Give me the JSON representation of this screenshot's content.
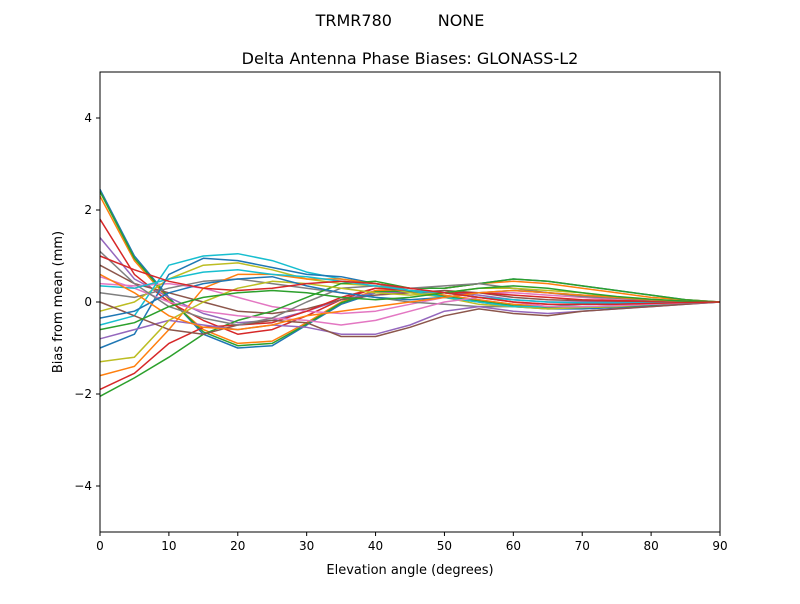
{
  "chart_data": {
    "type": "line",
    "suptitle": "TRMR780         NONE",
    "title": "Delta Antenna Phase Biases: GLONASS-L2",
    "xlabel": "Elevation angle (degrees)",
    "ylabel": "Bias from mean (mm)",
    "xlim": [
      0,
      90
    ],
    "ylim": [
      -5,
      5
    ],
    "xticks": [
      0,
      10,
      20,
      30,
      40,
      50,
      60,
      70,
      80,
      90
    ],
    "yticks": [
      -4,
      -2,
      0,
      2,
      4
    ],
    "ytick_labels": [
      "−4",
      "−2",
      "0",
      "2",
      "4"
    ],
    "grid": false,
    "colors": [
      "#1f77b4",
      "#ff7f0e",
      "#2ca02c",
      "#d62728",
      "#9467bd",
      "#8c564b",
      "#e377c2",
      "#7f7f7f",
      "#bcbd22",
      "#17becf"
    ],
    "x": [
      0,
      5,
      10,
      15,
      20,
      25,
      30,
      35,
      40,
      45,
      50,
      55,
      60,
      65,
      70,
      75,
      80,
      85,
      90
    ],
    "series": [
      {
        "values": [
          2.45,
          1.0,
          0.1,
          -0.7,
          -1.0,
          -0.95,
          -0.5,
          -0.05,
          0.2,
          0.22,
          0.1,
          0,
          -0.1,
          -0.15,
          -0.15,
          -0.12,
          -0.08,
          -0.04,
          0
        ]
      },
      {
        "values": [
          2.3,
          0.9,
          0.05,
          -0.6,
          -0.9,
          -0.85,
          -0.45,
          0,
          0.25,
          0.25,
          0.15,
          0.05,
          -0.05,
          -0.1,
          -0.1,
          -0.08,
          -0.05,
          -0.02,
          0
        ]
      },
      {
        "values": [
          2.4,
          0.95,
          0.08,
          -0.65,
          -0.95,
          -0.9,
          -0.48,
          -0.02,
          0.22,
          0.24,
          0.12,
          0.02,
          -0.08,
          -0.12,
          -0.12,
          -0.1,
          -0.06,
          -0.03,
          0
        ]
      },
      {
        "values": [
          1.8,
          0.6,
          0.0,
          -0.4,
          -0.7,
          -0.6,
          -0.3,
          0.05,
          0.3,
          0.25,
          0.2,
          0.1,
          0,
          -0.05,
          -0.05,
          -0.04,
          -0.03,
          -0.01,
          0
        ]
      },
      {
        "values": [
          1.4,
          0.5,
          0.1,
          -0.25,
          -0.45,
          -0.4,
          -0.2,
          0.05,
          0.2,
          0.2,
          0.2,
          0.15,
          0.05,
          0,
          0,
          0,
          0,
          0,
          0
        ]
      },
      {
        "values": [
          0.8,
          0.4,
          0.2,
          0.0,
          -0.2,
          -0.25,
          -0.15,
          0.05,
          0.15,
          0.2,
          0.25,
          0.2,
          0.1,
          0.05,
          0.03,
          0.02,
          0.01,
          0,
          0
        ]
      },
      {
        "values": [
          0.4,
          0.35,
          0.4,
          0.3,
          0.1,
          -0.1,
          -0.2,
          -0.25,
          -0.2,
          -0.05,
          0.1,
          0.2,
          0.2,
          0.15,
          0.1,
          0.05,
          0.03,
          0.01,
          0
        ]
      },
      {
        "values": [
          0.2,
          0.1,
          0.3,
          0.45,
          0.5,
          0.4,
          0.3,
          0.2,
          0.1,
          0.0,
          -0.05,
          -0.1,
          -0.1,
          -0.1,
          -0.05,
          -0.03,
          -0.02,
          0,
          0
        ]
      },
      {
        "values": [
          -0.2,
          0.0,
          0.5,
          0.8,
          0.85,
          0.7,
          0.5,
          0.4,
          0.35,
          0.2,
          0.1,
          -0.05,
          -0.1,
          -0.15,
          -0.12,
          -0.1,
          -0.05,
          -0.02,
          0
        ]
      },
      {
        "values": [
          -0.5,
          -0.3,
          0.8,
          1.0,
          1.05,
          0.9,
          0.65,
          0.5,
          0.4,
          0.25,
          0.1,
          0.0,
          -0.1,
          -0.1,
          -0.1,
          -0.08,
          -0.05,
          -0.02,
          0
        ]
      },
      {
        "values": [
          -1.0,
          -0.7,
          0.6,
          0.95,
          0.9,
          0.75,
          0.6,
          0.55,
          0.4,
          0.3,
          0.3,
          0.4,
          0.5,
          0.45,
          0.35,
          0.25,
          0.15,
          0.05,
          0
        ]
      },
      {
        "values": [
          -1.6,
          -1.4,
          -0.6,
          0.3,
          0.6,
          0.6,
          0.5,
          0.5,
          0.4,
          0.3,
          0.3,
          0.4,
          0.45,
          0.4,
          0.3,
          0.2,
          0.1,
          0.05,
          0
        ]
      },
      {
        "values": [
          -2.05,
          -1.65,
          -1.2,
          -0.7,
          -0.4,
          -0.2,
          0.1,
          0.4,
          0.45,
          0.3,
          0.3,
          0.4,
          0.5,
          0.45,
          0.35,
          0.25,
          0.15,
          0.05,
          0
        ]
      },
      {
        "values": [
          -1.9,
          -1.55,
          -0.9,
          -0.55,
          -0.5,
          -0.45,
          -0.2,
          0.1,
          0.3,
          0.25,
          0.2,
          0.2,
          0.15,
          0.1,
          0.05,
          0.03,
          0.02,
          0.01,
          0
        ]
      },
      {
        "values": [
          -0.8,
          -0.6,
          -0.4,
          -0.5,
          -0.6,
          -0.5,
          -0.55,
          -0.7,
          -0.7,
          -0.5,
          -0.2,
          -0.1,
          -0.2,
          -0.25,
          -0.2,
          -0.15,
          -0.1,
          -0.05,
          0
        ]
      },
      {
        "values": [
          0.0,
          -0.3,
          -0.6,
          -0.7,
          -0.5,
          -0.4,
          -0.45,
          -0.75,
          -0.75,
          -0.55,
          -0.3,
          -0.15,
          -0.25,
          -0.3,
          -0.2,
          -0.15,
          -0.1,
          -0.05,
          0
        ]
      },
      {
        "values": [
          0.55,
          0.3,
          0.0,
          -0.2,
          -0.3,
          -0.35,
          -0.4,
          -0.5,
          -0.4,
          -0.2,
          0,
          0.1,
          0,
          -0.1,
          -0.1,
          -0.08,
          -0.05,
          -0.02,
          0
        ]
      },
      {
        "values": [
          1.1,
          0.4,
          -0.1,
          -0.35,
          -0.5,
          -0.35,
          0.0,
          0.3,
          0.35,
          0.3,
          0.35,
          0.4,
          0.3,
          0.2,
          0.12,
          0.08,
          0.04,
          0.02,
          0
        ]
      },
      {
        "values": [
          -1.3,
          -1.2,
          -0.4,
          0.0,
          0.3,
          0.45,
          0.4,
          0.3,
          0.2,
          0.15,
          0.2,
          0.3,
          0.3,
          0.25,
          0.2,
          0.1,
          0.05,
          0.02,
          0
        ]
      },
      {
        "values": [
          0.35,
          0.3,
          0.5,
          0.65,
          0.7,
          0.6,
          0.55,
          0.45,
          0.35,
          0.25,
          0.2,
          0.1,
          0.05,
          0,
          -0.02,
          -0.02,
          -0.02,
          -0.01,
          0
        ]
      },
      {
        "values": [
          -0.35,
          -0.2,
          0.2,
          0.4,
          0.5,
          0.55,
          0.35,
          0.2,
          0.1,
          0.05,
          0.1,
          0.2,
          0.25,
          0.2,
          0.15,
          0.1,
          0.05,
          0.02,
          0
        ]
      },
      {
        "values": [
          0.6,
          0.2,
          -0.3,
          -0.55,
          -0.6,
          -0.5,
          -0.3,
          -0.2,
          -0.1,
          0.0,
          0.1,
          0.2,
          0.25,
          0.2,
          0.15,
          0.1,
          0.05,
          0.02,
          0
        ]
      },
      {
        "values": [
          -0.6,
          -0.45,
          -0.1,
          0.1,
          0.2,
          0.25,
          0.2,
          0.1,
          0.05,
          0.1,
          0.2,
          0.3,
          0.35,
          0.3,
          0.2,
          0.12,
          0.06,
          0.02,
          0
        ]
      },
      {
        "values": [
          1.0,
          0.7,
          0.45,
          0.3,
          0.25,
          0.3,
          0.4,
          0.45,
          0.4,
          0.3,
          0.2,
          0.1,
          0.0,
          -0.05,
          -0.05,
          -0.05,
          -0.03,
          -0.01,
          0
        ]
      }
    ]
  }
}
